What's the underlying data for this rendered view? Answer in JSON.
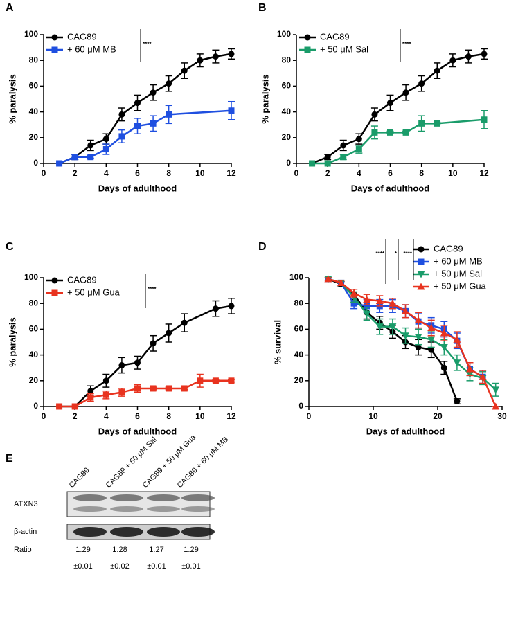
{
  "chart_data": [
    {
      "type": "line",
      "panel": "A",
      "xlabel": "Days of adulthood",
      "ylabel": "% paralysis",
      "xlim": [
        0,
        12
      ],
      "ylim": [
        0,
        100
      ],
      "xticks": [
        0,
        2,
        4,
        6,
        8,
        10,
        12
      ],
      "yticks": [
        0,
        20,
        40,
        60,
        80,
        100
      ],
      "legend": "upper left",
      "annotations": [
        "****"
      ],
      "series": [
        {
          "name": "CAG89",
          "color": "#000000",
          "marker": "circle",
          "x": [
            1,
            2,
            3,
            4,
            5,
            6,
            7,
            8,
            9,
            10,
            11,
            12
          ],
          "values": [
            0,
            5,
            14,
            19,
            38,
            47,
            55,
            62,
            72,
            80,
            83,
            85
          ],
          "errors": [
            0,
            2,
            4,
            4,
            5,
            6,
            6,
            6,
            6,
            5,
            5,
            4
          ]
        },
        {
          "name": "+ 60 μM MB",
          "color": "#1f4fe0",
          "marker": "square",
          "x": [
            1,
            2,
            3,
            4,
            5,
            6,
            7,
            8,
            12
          ],
          "values": [
            0,
            5,
            5,
            11,
            21,
            29,
            31,
            38,
            41
          ],
          "errors": [
            0,
            2,
            1,
            4,
            5,
            6,
            6,
            7,
            7
          ]
        }
      ]
    },
    {
      "type": "line",
      "panel": "B",
      "xlabel": "Days of adulthood",
      "ylabel": "% paralysis",
      "xlim": [
        0,
        12
      ],
      "ylim": [
        0,
        100
      ],
      "xticks": [
        0,
        2,
        4,
        6,
        8,
        10,
        12
      ],
      "yticks": [
        0,
        20,
        40,
        60,
        80,
        100
      ],
      "legend": "upper left",
      "annotations": [
        "****"
      ],
      "series": [
        {
          "name": "CAG89",
          "color": "#000000",
          "marker": "circle",
          "x": [
            1,
            2,
            3,
            4,
            5,
            6,
            7,
            8,
            9,
            10,
            11,
            12
          ],
          "values": [
            0,
            5,
            14,
            19,
            38,
            47,
            55,
            62,
            72,
            80,
            83,
            85
          ],
          "errors": [
            0,
            2,
            4,
            4,
            5,
            6,
            6,
            6,
            6,
            5,
            5,
            4
          ]
        },
        {
          "name": "+ 50 μM Sal",
          "color": "#1a9c6a",
          "marker": "square",
          "x": [
            1,
            2,
            3,
            4,
            5,
            6,
            7,
            8,
            9,
            12
          ],
          "values": [
            0,
            0,
            5,
            11,
            24,
            24,
            24,
            31,
            31,
            34
          ],
          "errors": [
            0,
            0,
            2,
            3,
            5,
            1,
            1,
            6,
            1,
            7
          ]
        }
      ]
    },
    {
      "type": "line",
      "panel": "C",
      "xlabel": "Days of adulthood",
      "ylabel": "% paralysis",
      "xlim": [
        0,
        12
      ],
      "ylim": [
        0,
        100
      ],
      "xticks": [
        0,
        2,
        4,
        6,
        8,
        10,
        12
      ],
      "yticks": [
        0,
        20,
        40,
        60,
        80,
        100
      ],
      "legend": "upper left",
      "annotations": [
        "****"
      ],
      "series": [
        {
          "name": "CAG89",
          "color": "#000000",
          "marker": "circle",
          "x": [
            1,
            2,
            3,
            4,
            5,
            6,
            7,
            8,
            9,
            11,
            12
          ],
          "values": [
            0,
            0,
            12,
            20,
            32,
            34,
            49,
            57,
            65,
            76,
            78
          ],
          "errors": [
            0,
            0,
            4,
            5,
            6,
            5,
            6,
            7,
            7,
            6,
            6
          ]
        },
        {
          "name": "+ 50 μM Gua",
          "color": "#e8331f",
          "marker": "square",
          "x": [
            1,
            2,
            3,
            4,
            5,
            6,
            7,
            8,
            9,
            10,
            11,
            12
          ],
          "values": [
            0,
            0,
            7,
            9,
            11,
            14,
            14,
            14,
            14,
            20,
            20,
            20
          ],
          "errors": [
            0,
            0,
            3,
            3,
            3,
            3,
            1,
            1,
            1,
            5,
            1,
            1
          ]
        }
      ]
    },
    {
      "type": "line",
      "panel": "D",
      "xlabel": "Days of adulthood",
      "ylabel": "% survival",
      "xlim": [
        0,
        30
      ],
      "ylim": [
        0,
        100
      ],
      "xticks": [
        0,
        10,
        20,
        30
      ],
      "yticks": [
        0,
        20,
        40,
        60,
        80,
        100
      ],
      "legend": "upper right",
      "annotations": [
        "****",
        "*",
        "****"
      ],
      "series": [
        {
          "name": "CAG89",
          "color": "#000000",
          "marker": "circle",
          "x": [
            3,
            5,
            7,
            9,
            11,
            13,
            15,
            17,
            19,
            21,
            23
          ],
          "values": [
            99,
            95,
            87,
            73,
            65,
            58,
            50,
            46,
            44,
            30,
            4
          ],
          "errors": [
            1,
            2,
            4,
            5,
            5,
            5,
            5,
            6,
            6,
            5,
            2
          ]
        },
        {
          "name": "+ 60 μM MB",
          "color": "#1f4fe0",
          "marker": "square",
          "x": [
            3,
            5,
            7,
            9,
            11,
            13,
            15,
            17,
            19,
            21,
            23,
            25,
            27
          ],
          "values": [
            99,
            96,
            80,
            78,
            78,
            78,
            74,
            66,
            63,
            60,
            51,
            29,
            23
          ],
          "errors": [
            1,
            2,
            4,
            5,
            5,
            5,
            5,
            6,
            6,
            6,
            6,
            5,
            5
          ]
        },
        {
          "name": "+ 50 μM Sal",
          "color": "#1a9c6a",
          "marker": "triangle-down",
          "x": [
            3,
            5,
            7,
            9,
            11,
            13,
            15,
            17,
            19,
            21,
            23,
            25,
            27,
            29
          ],
          "values": [
            99,
            96,
            85,
            72,
            62,
            62,
            55,
            54,
            52,
            46,
            34,
            25,
            22,
            13
          ],
          "errors": [
            1,
            2,
            4,
            5,
            6,
            6,
            6,
            6,
            6,
            6,
            6,
            5,
            5,
            5
          ]
        },
        {
          "name": "+ 50 μM Gua",
          "color": "#e8331f",
          "marker": "triangle-up",
          "x": [
            3,
            5,
            7,
            9,
            11,
            13,
            15,
            17,
            19,
            21,
            23,
            25,
            27,
            29
          ],
          "values": [
            99,
            96,
            88,
            83,
            82,
            80,
            74,
            67,
            61,
            57,
            52,
            29,
            23,
            0
          ],
          "errors": [
            1,
            2,
            3,
            4,
            4,
            4,
            5,
            6,
            6,
            6,
            6,
            5,
            5,
            0
          ]
        }
      ]
    }
  ],
  "blot": {
    "panel": "E",
    "lanes": [
      "CAG89",
      "CAG89 + 50 μM Sal",
      "CAG89 + 50 μM Gua",
      "CAG89 + 60 μM MB"
    ],
    "rows": [
      "ATXN3",
      "β-actin"
    ],
    "ratio_label": "Ratio",
    "ratios": [
      "1.29",
      "1.28",
      "1.27",
      "1.29"
    ],
    "errors": [
      "±0.01",
      "±0.02",
      "±0.01",
      "±0.01"
    ]
  }
}
